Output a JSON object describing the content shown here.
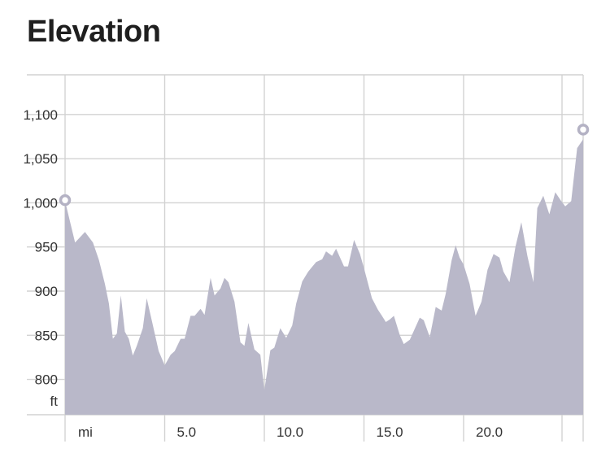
{
  "title": "Elevation",
  "colors": {
    "area_fill": "#b9b8c9",
    "grid": "#d2d2d2",
    "marker": "#b4b2c4"
  },
  "chart_data": {
    "type": "area",
    "title": "Elevation",
    "ylabel": "ft",
    "xlabel": "mi",
    "xlim": [
      0,
      26
    ],
    "ylim": [
      760,
      1145
    ],
    "y_ticks": [
      800,
      850,
      900,
      950,
      1000,
      1050,
      1100
    ],
    "y_tick_labels": [
      "800",
      "850",
      "900",
      "950",
      "1,000",
      "1,050",
      "1,100"
    ],
    "x_ticks": [
      5,
      10,
      15,
      20
    ],
    "x_tick_labels": [
      "5.0",
      "10.0",
      "15.0",
      "20.0"
    ],
    "x_unit_label": "mi",
    "y_unit_label": "ft",
    "grid": true,
    "endpoint_markers": true,
    "series": [
      {
        "x": [
          0,
          0.5,
          1.0,
          1.4,
          1.7,
          2.0,
          2.2,
          2.4,
          2.6,
          2.8,
          3.0,
          3.2,
          3.4,
          3.6,
          3.9,
          4.1,
          4.4,
          4.7,
          5.0,
          5.3,
          5.5,
          5.8,
          6.0,
          6.3,
          6.5,
          6.8,
          7.0,
          7.3,
          7.5,
          7.8,
          8.0,
          8.2,
          8.5,
          8.8,
          9.0,
          9.2,
          9.5,
          9.8,
          10.0,
          10.3,
          10.5,
          10.8,
          11.1,
          11.4,
          11.6,
          11.9,
          12.2,
          12.6,
          12.9,
          13.1,
          13.4,
          13.6,
          14.0,
          14.2,
          14.5,
          14.8,
          15.0,
          15.4,
          15.7,
          15.9,
          16.1,
          16.3,
          16.5,
          16.8,
          17.0,
          17.3,
          17.5,
          17.8,
          18.0,
          18.3,
          18.6,
          18.9,
          19.1,
          19.4,
          19.6,
          19.8,
          20.0,
          20.3,
          20.6,
          20.9,
          21.2,
          21.5,
          21.8,
          22.0,
          22.3,
          22.6,
          22.9,
          23.2,
          23.5,
          23.7,
          24.0,
          24.3,
          24.6,
          24.9,
          25.1,
          25.4,
          25.7,
          26.0
        ],
        "y": [
          1002,
          955,
          967,
          955,
          935,
          908,
          886,
          846,
          852,
          895,
          854,
          846,
          827,
          838,
          858,
          892,
          862,
          832,
          816,
          828,
          832,
          846,
          846,
          872,
          872,
          880,
          873,
          915,
          895,
          903,
          915,
          910,
          888,
          842,
          838,
          864,
          834,
          828,
          788,
          833,
          836,
          858,
          847,
          861,
          886,
          911,
          922,
          933,
          936,
          945,
          940,
          948,
          928,
          928,
          958,
          942,
          926,
          892,
          879,
          872,
          865,
          868,
          872,
          850,
          840,
          845,
          855,
          870,
          867,
          848,
          882,
          878,
          897,
          935,
          952,
          938,
          930,
          908,
          872,
          888,
          924,
          942,
          938,
          922,
          910,
          950,
          978,
          940,
          910,
          994,
          1008,
          987,
          1012,
          1002,
          996,
          1002,
          1062,
          1072
        ]
      }
    ],
    "start_marker_value": 1003,
    "end_marker_value": 1083
  }
}
